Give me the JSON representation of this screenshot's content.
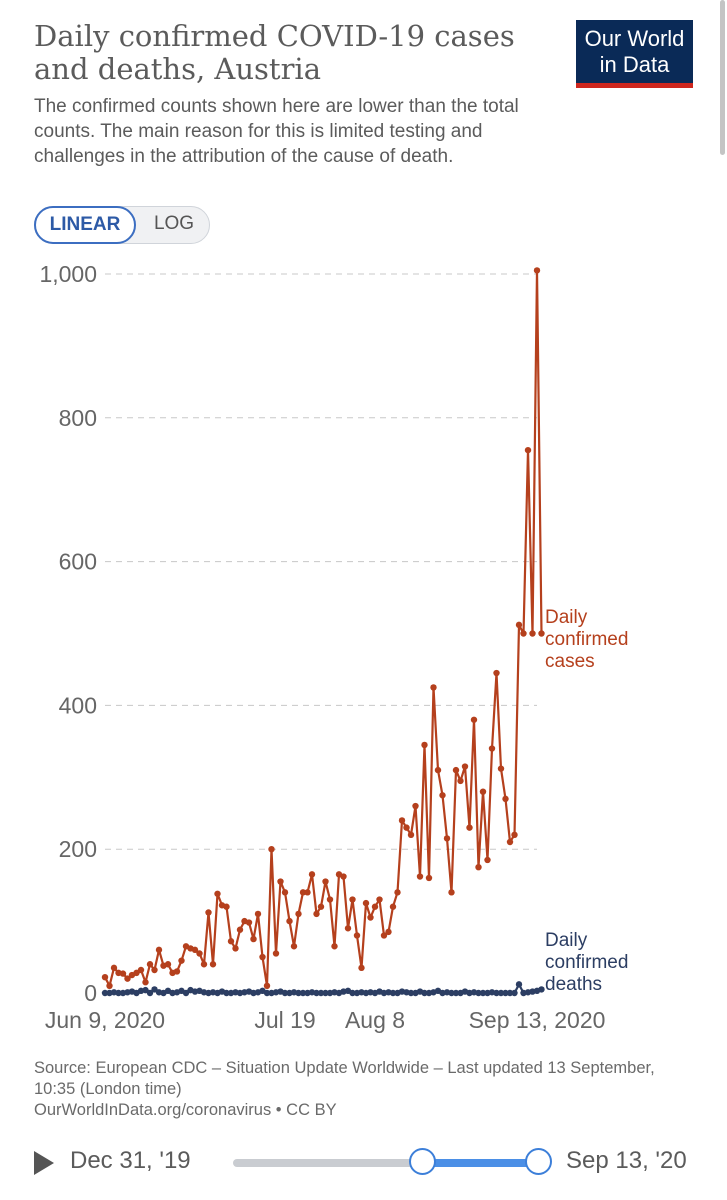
{
  "header": {
    "title": "Daily confirmed COVID-19 cases and deaths, Austria",
    "subtitle": "The confirmed counts shown here are lower than the total counts. The main reason for this is limited testing and challenges in the attribution of the cause of death.",
    "logo_line1": "Our World",
    "logo_line2": "in Data"
  },
  "toggle": {
    "linear": "LINEAR",
    "log": "LOG"
  },
  "footer": {
    "source": "Source: European CDC – Situation Update Worldwide – Last updated 13 September, 10:35 (London time)",
    "url": "OurWorldInData.org/coronavirus • CC BY"
  },
  "timeline": {
    "start_label": "Dec 31, '19",
    "end_label": "Sep 13, '20",
    "selected_start_fraction": 0.62,
    "selected_end_fraction": 1.0
  },
  "colors": {
    "cases": "#b5401d",
    "deaths": "#2c3e63",
    "grid": "#c8c8c8",
    "logo": "#0a2a57",
    "logo_accent": "#ce261e",
    "accent": "#3c6ec1"
  },
  "chart_data": {
    "type": "line",
    "y_tick_labels": [
      "0",
      "200",
      "400",
      "600",
      "800",
      "1,000"
    ],
    "y_ticks": [
      0,
      200,
      400,
      600,
      800,
      1000
    ],
    "ylim": [
      0,
      1000
    ],
    "x_start": "2020-06-09",
    "x_end": "2020-09-13",
    "x_tick_labels": [
      "Jun 9, 2020",
      "Jul 19",
      "Aug 8",
      "Sep 13, 2020"
    ],
    "x_ticks": [
      "2020-06-09",
      "2020-07-19",
      "2020-08-08",
      "2020-09-13"
    ],
    "grid": "horizontal dashed",
    "series": [
      {
        "name": "Daily confirmed cases",
        "label_lines": [
          "Daily",
          "confirmed",
          "cases"
        ],
        "start_date": "2020-06-09",
        "values": [
          22,
          10,
          35,
          28,
          27,
          20,
          25,
          28,
          32,
          15,
          40,
          32,
          60,
          38,
          40,
          28,
          30,
          45,
          65,
          62,
          60,
          55,
          40,
          112,
          40,
          138,
          122,
          120,
          72,
          62,
          88,
          100,
          98,
          75,
          110,
          50,
          10,
          200,
          55,
          155,
          140,
          100,
          65,
          110,
          140,
          140,
          165,
          110,
          120,
          155,
          130,
          65,
          165,
          162,
          90,
          130,
          80,
          35,
          125,
          105,
          120,
          130,
          80,
          85,
          120,
          140,
          240,
          230,
          220,
          260,
          162,
          345,
          160,
          425,
          310,
          275,
          215,
          140,
          310,
          295,
          315,
          230,
          380,
          175,
          280,
          185,
          340,
          445,
          312,
          270,
          210,
          220,
          512,
          500,
          755,
          500,
          1005,
          500
        ]
      },
      {
        "name": "Daily confirmed deaths",
        "label_lines": [
          "Daily",
          "confirmed",
          "deaths"
        ],
        "start_date": "2020-06-09",
        "values": [
          0,
          0,
          1,
          0,
          0,
          1,
          2,
          0,
          3,
          4,
          0,
          5,
          1,
          0,
          3,
          0,
          1,
          3,
          0,
          4,
          2,
          3,
          1,
          0,
          1,
          0,
          2,
          0,
          0,
          1,
          0,
          1,
          2,
          0,
          1,
          3,
          0,
          0,
          1,
          2,
          0,
          0,
          1,
          0,
          0,
          0,
          1,
          0,
          0,
          0,
          0,
          1,
          0,
          2,
          3,
          0,
          0,
          1,
          0,
          1,
          0,
          2,
          0,
          1,
          0,
          0,
          2,
          1,
          0,
          0,
          2,
          0,
          0,
          1,
          3,
          0,
          1,
          0,
          0,
          0,
          2,
          0,
          1,
          0,
          0,
          0,
          1,
          0,
          0,
          0,
          0,
          0,
          12,
          0,
          1,
          2,
          3,
          5
        ]
      }
    ]
  }
}
